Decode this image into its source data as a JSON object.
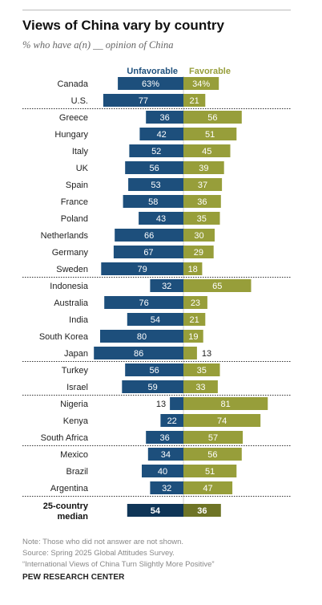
{
  "title": "Views of China vary by country",
  "subtitle": "% who have a(n) __ opinion of China",
  "chart_data": {
    "type": "bar",
    "title": "Views of China vary by country",
    "subtitle": "% who have a(n) __ opinion of China",
    "series": [
      {
        "name": "Unfavorable",
        "color": "#1d4f7c"
      },
      {
        "name": "Favorable",
        "color": "#979e3a"
      }
    ],
    "rows": [
      {
        "country": "Canada",
        "unfavorable": 63,
        "favorable": 34,
        "unfav_label": "63%",
        "fav_label": "34%"
      },
      {
        "country": "U.S.",
        "unfavorable": 77,
        "favorable": 21,
        "unfav_label": "77",
        "fav_label": "21"
      },
      {
        "country": "Greece",
        "unfavorable": 36,
        "favorable": 56,
        "unfav_label": "36",
        "fav_label": "56"
      },
      {
        "country": "Hungary",
        "unfavorable": 42,
        "favorable": 51,
        "unfav_label": "42",
        "fav_label": "51"
      },
      {
        "country": "Italy",
        "unfavorable": 52,
        "favorable": 45,
        "unfav_label": "52",
        "fav_label": "45"
      },
      {
        "country": "UK",
        "unfavorable": 56,
        "favorable": 39,
        "unfav_label": "56",
        "fav_label": "39"
      },
      {
        "country": "Spain",
        "unfavorable": 53,
        "favorable": 37,
        "unfav_label": "53",
        "fav_label": "37"
      },
      {
        "country": "France",
        "unfavorable": 58,
        "favorable": 36,
        "unfav_label": "58",
        "fav_label": "36"
      },
      {
        "country": "Poland",
        "unfavorable": 43,
        "favorable": 35,
        "unfav_label": "43",
        "fav_label": "35"
      },
      {
        "country": "Netherlands",
        "unfavorable": 66,
        "favorable": 30,
        "unfav_label": "66",
        "fav_label": "30"
      },
      {
        "country": "Germany",
        "unfavorable": 67,
        "favorable": 29,
        "unfav_label": "67",
        "fav_label": "29"
      },
      {
        "country": "Sweden",
        "unfavorable": 79,
        "favorable": 18,
        "unfav_label": "79",
        "fav_label": "18"
      },
      {
        "country": "Indonesia",
        "unfavorable": 32,
        "favorable": 65,
        "unfav_label": "32",
        "fav_label": "65"
      },
      {
        "country": "Australia",
        "unfavorable": 76,
        "favorable": 23,
        "unfav_label": "76",
        "fav_label": "23"
      },
      {
        "country": "India",
        "unfavorable": 54,
        "favorable": 21,
        "unfav_label": "54",
        "fav_label": "21"
      },
      {
        "country": "South Korea",
        "unfavorable": 80,
        "favorable": 19,
        "unfav_label": "80",
        "fav_label": "19"
      },
      {
        "country": "Japan",
        "unfavorable": 86,
        "favorable": 13,
        "unfav_label": "86",
        "fav_label": "13"
      },
      {
        "country": "Turkey",
        "unfavorable": 56,
        "favorable": 35,
        "unfav_label": "56",
        "fav_label": "35"
      },
      {
        "country": "Israel",
        "unfavorable": 59,
        "favorable": 33,
        "unfav_label": "59",
        "fav_label": "33"
      },
      {
        "country": "Nigeria",
        "unfavorable": 13,
        "favorable": 81,
        "unfav_label": "13",
        "fav_label": "81"
      },
      {
        "country": "Kenya",
        "unfavorable": 22,
        "favorable": 74,
        "unfav_label": "22",
        "fav_label": "74"
      },
      {
        "country": "South Africa",
        "unfavorable": 36,
        "favorable": 57,
        "unfav_label": "36",
        "fav_label": "57"
      },
      {
        "country": "Mexico",
        "unfavorable": 34,
        "favorable": 56,
        "unfav_label": "34",
        "fav_label": "56"
      },
      {
        "country": "Brazil",
        "unfavorable": 40,
        "favorable": 51,
        "unfav_label": "40",
        "fav_label": "51"
      },
      {
        "country": "Argentina",
        "unfavorable": 32,
        "favorable": 47,
        "unfav_label": "32",
        "fav_label": "47"
      }
    ],
    "median": {
      "label_line1": "25-country",
      "label_line2": "median",
      "unfavorable": 54,
      "favorable": 36,
      "unfav_label": "54",
      "fav_label": "36",
      "unfav_color": "#0f3557",
      "fav_color": "#6e7426"
    },
    "group_breaks_after": [
      "U.S.",
      "Sweden",
      "Japan",
      "Israel",
      "South Africa",
      "Argentina"
    ],
    "grid": false
  },
  "notes": {
    "note": "Note: Those who did not answer are not shown.",
    "source": "Source: Spring 2025 Global Attitudes Survey.",
    "report": "“International Views of China Turn Slightly More Positive”"
  },
  "footer": "PEW RESEARCH CENTER"
}
